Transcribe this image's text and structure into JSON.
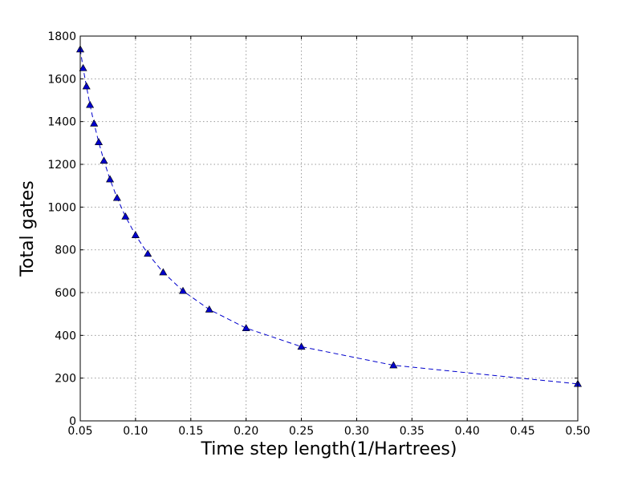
{
  "chart_data": {
    "type": "line",
    "title": "",
    "xlabel": "Time step length(1/Hartrees)",
    "ylabel": "Total gates",
    "xlim": [
      0.05,
      0.5
    ],
    "ylim": [
      0,
      1800
    ],
    "xticks": [
      "0.05",
      "0.10",
      "0.15",
      "0.20",
      "0.25",
      "0.30",
      "0.35",
      "0.40",
      "0.45",
      "0.50"
    ],
    "yticks": [
      "0",
      "200",
      "400",
      "600",
      "800",
      "1000",
      "1200",
      "1400",
      "1600",
      "1800"
    ],
    "grid": true,
    "series": [
      {
        "color": "#0000cc",
        "line_style": "dashed",
        "marker": "triangle",
        "x": [
          0.05,
          0.0526,
          0.0556,
          0.0588,
          0.0625,
          0.0667,
          0.0714,
          0.0769,
          0.0833,
          0.0909,
          0.1,
          0.1111,
          0.125,
          0.1429,
          0.1667,
          0.2,
          0.25,
          0.3333,
          0.5
        ],
        "y": [
          1738,
          1650,
          1565,
          1478,
          1391,
          1304,
          1217,
          1130,
          1043,
          956,
          869,
          782,
          695,
          608,
          521,
          434,
          347,
          260,
          173
        ]
      }
    ]
  }
}
